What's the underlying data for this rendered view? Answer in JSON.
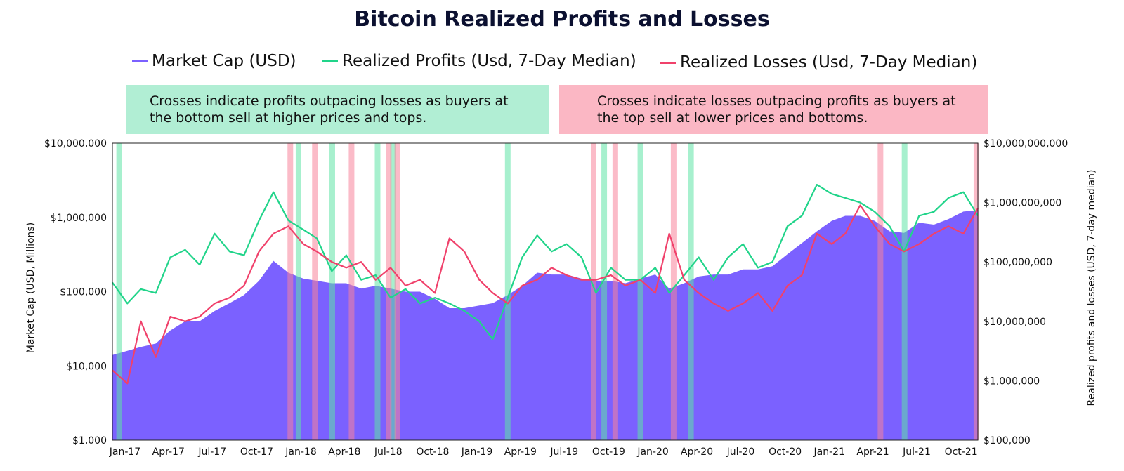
{
  "chart_data": {
    "type": "area",
    "title": "Bitcoin Realized Profits and Losses",
    "notes": {
      "green": [
        "Crosses indicate profits outpacing losses as buyers at",
        "the bottom sell at higher prices and tops."
      ],
      "red": [
        "Crosses indicate losses outpacing profits as buyers at",
        "the top sell at lower prices and bottoms."
      ]
    },
    "ylabel_left": "Market Cap (USD, Millions)",
    "ylabel_right": "Realized profits and losses (USD, 7-day median)",
    "y_left_scale": "log",
    "y_left_range": [
      1000,
      10000000
    ],
    "y_left_ticks": [
      "$1,000",
      "$10,000",
      "$100,000",
      "$1,000,000",
      "$10,000,000"
    ],
    "y_right_scale": "log",
    "y_right_range": [
      100000,
      10000000000
    ],
    "y_right_ticks": [
      "$100,000",
      "$1,000,000",
      "$10,000,000",
      "$100,000,000",
      "$1,000,000,000",
      "$10,000,000,000"
    ],
    "x_range": [
      "2017-01-01",
      "2021-12-01"
    ],
    "x_ticks": [
      {
        "date": "2017-01-01",
        "label": "Jan-17"
      },
      {
        "date": "2017-04-01",
        "label": "Apr-17"
      },
      {
        "date": "2017-07-01",
        "label": "Jul-17"
      },
      {
        "date": "2017-10-01",
        "label": "Oct-17"
      },
      {
        "date": "2018-01-01",
        "label": "Jan-18"
      },
      {
        "date": "2018-04-01",
        "label": "Apr-18"
      },
      {
        "date": "2018-07-01",
        "label": "Jul-18"
      },
      {
        "date": "2018-10-01",
        "label": "Oct-18"
      },
      {
        "date": "2019-01-01",
        "label": "Jan-19"
      },
      {
        "date": "2019-04-01",
        "label": "Apr-19"
      },
      {
        "date": "2019-07-01",
        "label": "Jul-19"
      },
      {
        "date": "2019-10-01",
        "label": "Oct-19"
      },
      {
        "date": "2020-01-01",
        "label": "Jan-20"
      },
      {
        "date": "2020-04-01",
        "label": "Apr-20"
      },
      {
        "date": "2020-07-01",
        "label": "Jul-20"
      },
      {
        "date": "2020-10-01",
        "label": "Oct-20"
      },
      {
        "date": "2021-01-01",
        "label": "Jan-21"
      },
      {
        "date": "2021-04-01",
        "label": "Apr-21"
      },
      {
        "date": "2021-07-01",
        "label": "Jul-21"
      },
      {
        "date": "2021-10-01",
        "label": "Oct-21"
      }
    ],
    "legend_position": "top",
    "series": [
      {
        "name": "Market Cap (USD)",
        "kind": "area",
        "axis": "left",
        "color": "#7b61ff",
        "x": [
          "2017-01-01",
          "2017-02-01",
          "2017-03-01",
          "2017-04-01",
          "2017-05-01",
          "2017-06-01",
          "2017-07-01",
          "2017-08-01",
          "2017-09-01",
          "2017-10-01",
          "2017-11-01",
          "2017-12-01",
          "2018-01-01",
          "2018-02-01",
          "2018-03-01",
          "2018-04-01",
          "2018-05-01",
          "2018-06-01",
          "2018-07-01",
          "2018-08-01",
          "2018-09-01",
          "2018-10-01",
          "2018-11-01",
          "2018-12-01",
          "2019-01-01",
          "2019-02-01",
          "2019-03-01",
          "2019-04-01",
          "2019-05-01",
          "2019-06-01",
          "2019-07-01",
          "2019-08-01",
          "2019-09-01",
          "2019-10-01",
          "2019-11-01",
          "2019-12-01",
          "2020-01-01",
          "2020-02-01",
          "2020-03-01",
          "2020-04-01",
          "2020-05-01",
          "2020-06-01",
          "2020-07-01",
          "2020-08-01",
          "2020-09-01",
          "2020-10-01",
          "2020-11-01",
          "2020-12-01",
          "2021-01-01",
          "2021-02-01",
          "2021-03-01",
          "2021-04-01",
          "2021-05-01",
          "2021-06-01",
          "2021-07-01",
          "2021-08-01",
          "2021-09-01",
          "2021-10-01",
          "2021-11-01",
          "2021-12-01"
        ],
        "values": [
          14000,
          16000,
          18000,
          20000,
          30000,
          40000,
          40000,
          55000,
          70000,
          90000,
          140000,
          260000,
          180000,
          150000,
          140000,
          130000,
          130000,
          110000,
          120000,
          110000,
          100000,
          100000,
          80000,
          60000,
          60000,
          65000,
          70000,
          90000,
          120000,
          180000,
          170000,
          170000,
          150000,
          140000,
          140000,
          130000,
          150000,
          170000,
          110000,
          130000,
          160000,
          170000,
          170000,
          200000,
          200000,
          220000,
          320000,
          450000,
          650000,
          900000,
          1050000,
          1050000,
          900000,
          650000,
          620000,
          850000,
          800000,
          950000,
          1200000,
          1250000
        ]
      },
      {
        "name": "Realized Profits (Usd, 7-Day Median)",
        "kind": "line",
        "axis": "right",
        "color": "#21d48a",
        "x": [
          "2017-01-01",
          "2017-02-01",
          "2017-03-01",
          "2017-04-01",
          "2017-05-01",
          "2017-06-01",
          "2017-07-01",
          "2017-08-01",
          "2017-09-01",
          "2017-10-01",
          "2017-11-01",
          "2017-12-01",
          "2018-01-01",
          "2018-02-01",
          "2018-03-01",
          "2018-04-01",
          "2018-05-01",
          "2018-06-01",
          "2018-07-01",
          "2018-08-01",
          "2018-09-01",
          "2018-10-01",
          "2018-11-01",
          "2018-12-01",
          "2019-01-01",
          "2019-02-01",
          "2019-03-01",
          "2019-04-01",
          "2019-05-01",
          "2019-06-01",
          "2019-07-01",
          "2019-08-01",
          "2019-09-01",
          "2019-10-01",
          "2019-11-01",
          "2019-12-01",
          "2020-01-01",
          "2020-02-01",
          "2020-03-01",
          "2020-04-01",
          "2020-05-01",
          "2020-06-01",
          "2020-07-01",
          "2020-08-01",
          "2020-09-01",
          "2020-10-01",
          "2020-11-01",
          "2020-12-01",
          "2021-01-01",
          "2021-02-01",
          "2021-03-01",
          "2021-04-01",
          "2021-05-01",
          "2021-06-01",
          "2021-07-01",
          "2021-08-01",
          "2021-09-01",
          "2021-10-01",
          "2021-11-01",
          "2021-12-01"
        ],
        "values": [
          45000000,
          20000000,
          35000000,
          30000000,
          120000000,
          160000000,
          90000000,
          300000000,
          150000000,
          130000000,
          500000000,
          1500000000,
          500000000,
          350000000,
          250000000,
          70000000,
          130000000,
          50000000,
          60000000,
          25000000,
          35000000,
          20000000,
          25000000,
          20000000,
          15000000,
          10000000,
          5000000,
          25000000,
          120000000,
          280000000,
          150000000,
          200000000,
          120000000,
          30000000,
          80000000,
          50000000,
          50000000,
          80000000,
          30000000,
          60000000,
          120000000,
          50000000,
          120000000,
          200000000,
          80000000,
          100000000,
          400000000,
          600000000,
          2000000000,
          1400000000,
          1200000000,
          1000000000,
          700000000,
          400000000,
          150000000,
          600000000,
          700000000,
          1200000000,
          1500000000,
          600000000
        ]
      },
      {
        "name": "Realized Losses (Usd, 7-Day Median)",
        "kind": "line",
        "axis": "right",
        "color": "#f0416b",
        "x": [
          "2017-01-01",
          "2017-02-01",
          "2017-03-01",
          "2017-04-01",
          "2017-05-01",
          "2017-06-01",
          "2017-07-01",
          "2017-08-01",
          "2017-09-01",
          "2017-10-01",
          "2017-11-01",
          "2017-12-01",
          "2018-01-01",
          "2018-02-01",
          "2018-03-01",
          "2018-04-01",
          "2018-05-01",
          "2018-06-01",
          "2018-07-01",
          "2018-08-01",
          "2018-09-01",
          "2018-10-01",
          "2018-11-01",
          "2018-12-01",
          "2019-01-01",
          "2019-02-01",
          "2019-03-01",
          "2019-04-01",
          "2019-05-01",
          "2019-06-01",
          "2019-07-01",
          "2019-08-01",
          "2019-09-01",
          "2019-10-01",
          "2019-11-01",
          "2019-12-01",
          "2020-01-01",
          "2020-02-01",
          "2020-03-01",
          "2020-04-01",
          "2020-05-01",
          "2020-06-01",
          "2020-07-01",
          "2020-08-01",
          "2020-09-01",
          "2020-10-01",
          "2020-11-01",
          "2020-12-01",
          "2021-01-01",
          "2021-02-01",
          "2021-03-01",
          "2021-04-01",
          "2021-05-01",
          "2021-06-01",
          "2021-07-01",
          "2021-08-01",
          "2021-09-01",
          "2021-10-01",
          "2021-11-01",
          "2021-12-01"
        ],
        "values": [
          1500000,
          900000,
          10000000,
          2500000,
          12000000,
          10000000,
          12000000,
          20000000,
          25000000,
          40000000,
          150000000,
          300000000,
          400000000,
          200000000,
          150000000,
          100000000,
          80000000,
          100000000,
          50000000,
          80000000,
          40000000,
          50000000,
          30000000,
          250000000,
          150000000,
          50000000,
          30000000,
          20000000,
          40000000,
          50000000,
          80000000,
          60000000,
          50000000,
          50000000,
          60000000,
          40000000,
          50000000,
          30000000,
          300000000,
          50000000,
          30000000,
          20000000,
          15000000,
          20000000,
          30000000,
          15000000,
          40000000,
          60000000,
          300000000,
          200000000,
          300000000,
          900000000,
          400000000,
          200000000,
          150000000,
          200000000,
          300000000,
          400000000,
          300000000,
          800000000
        ]
      }
    ],
    "cross_bands": {
      "profit_green": [
        "2017-01-15",
        "2018-01-22",
        "2018-04-02",
        "2018-07-05",
        "2018-08-06",
        "2019-04-01",
        "2019-10-18",
        "2020-01-01",
        "2020-04-15",
        "2021-07-02"
      ],
      "loss_red": [
        "2018-01-05",
        "2018-02-25",
        "2018-05-12",
        "2018-07-28",
        "2018-08-15",
        "2019-09-26",
        "2019-11-10",
        "2020-03-10",
        "2021-05-13",
        "2021-11-28"
      ]
    }
  }
}
